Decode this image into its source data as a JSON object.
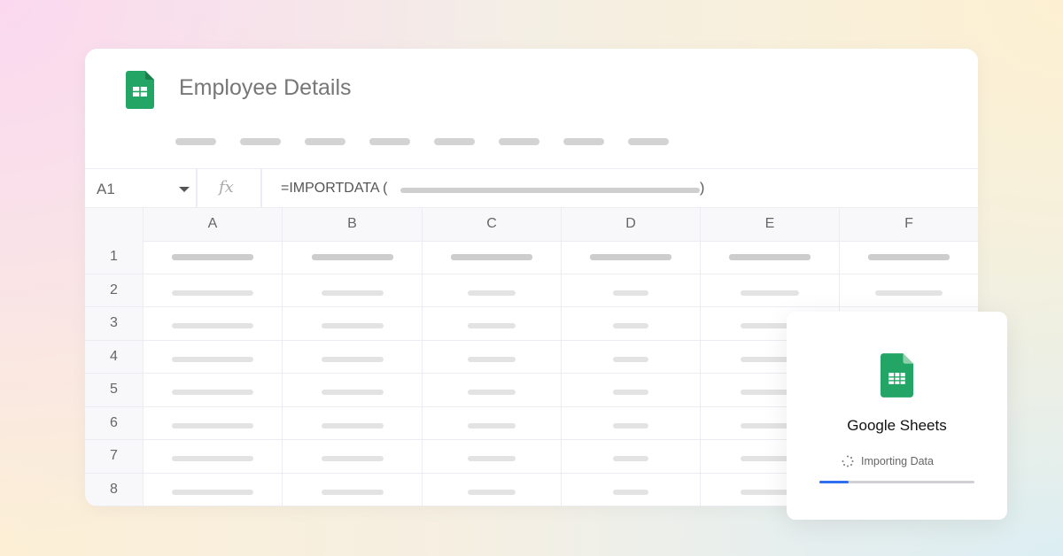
{
  "sheet": {
    "title": "Employee Details",
    "cell_ref": "A1",
    "formula": "=IMPORTDATA (",
    "formula_close": ")"
  },
  "columns": [
    "A",
    "B",
    "C",
    "D",
    "E",
    "F"
  ],
  "rows": [
    "1",
    "2",
    "3",
    "4",
    "5",
    "6",
    "7",
    "8"
  ],
  "dialog": {
    "title": "Google Sheets",
    "status": "Importing Data",
    "progress": 0.19
  },
  "icons": [
    "google-sheets-icon",
    "dropdown-caret-icon",
    "fx-icon",
    "spinner-icon"
  ],
  "colors": {
    "sheets_green": "#23a566",
    "progress": "#2f6fef"
  }
}
